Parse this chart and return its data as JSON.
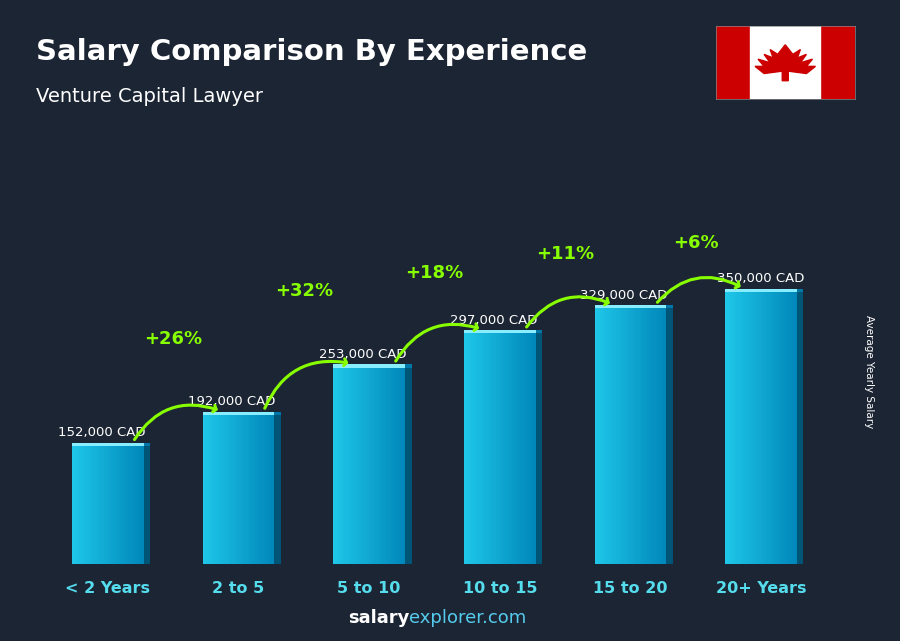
{
  "title": "Salary Comparison By Experience",
  "subtitle": "Venture Capital Lawyer",
  "categories": [
    "< 2 Years",
    "2 to 5",
    "5 to 10",
    "10 to 15",
    "15 to 20",
    "20+ Years"
  ],
  "values": [
    152000,
    192000,
    253000,
    297000,
    329000,
    350000
  ],
  "labels": [
    "152,000 CAD",
    "192,000 CAD",
    "253,000 CAD",
    "297,000 CAD",
    "329,000 CAD",
    "350,000 CAD"
  ],
  "pct_changes": [
    "+26%",
    "+32%",
    "+18%",
    "+11%",
    "+6%"
  ],
  "bar_face_left": "#1ec8e8",
  "bar_face_right": "#0088bb",
  "bar_top_color": "#55eeff",
  "bar_side_color": "#005577",
  "bg_color": "#1c2533",
  "title_color": "#ffffff",
  "subtitle_color": "#ffffff",
  "label_color": "#ffffff",
  "pct_color": "#88ff00",
  "xtick_color": "#55ddee",
  "footer_salary_color": "#ffffff",
  "footer_explorer_color": "#55bbdd",
  "ylabel": "Average Yearly Salary",
  "figsize": [
    9.0,
    6.41
  ],
  "dpi": 100
}
